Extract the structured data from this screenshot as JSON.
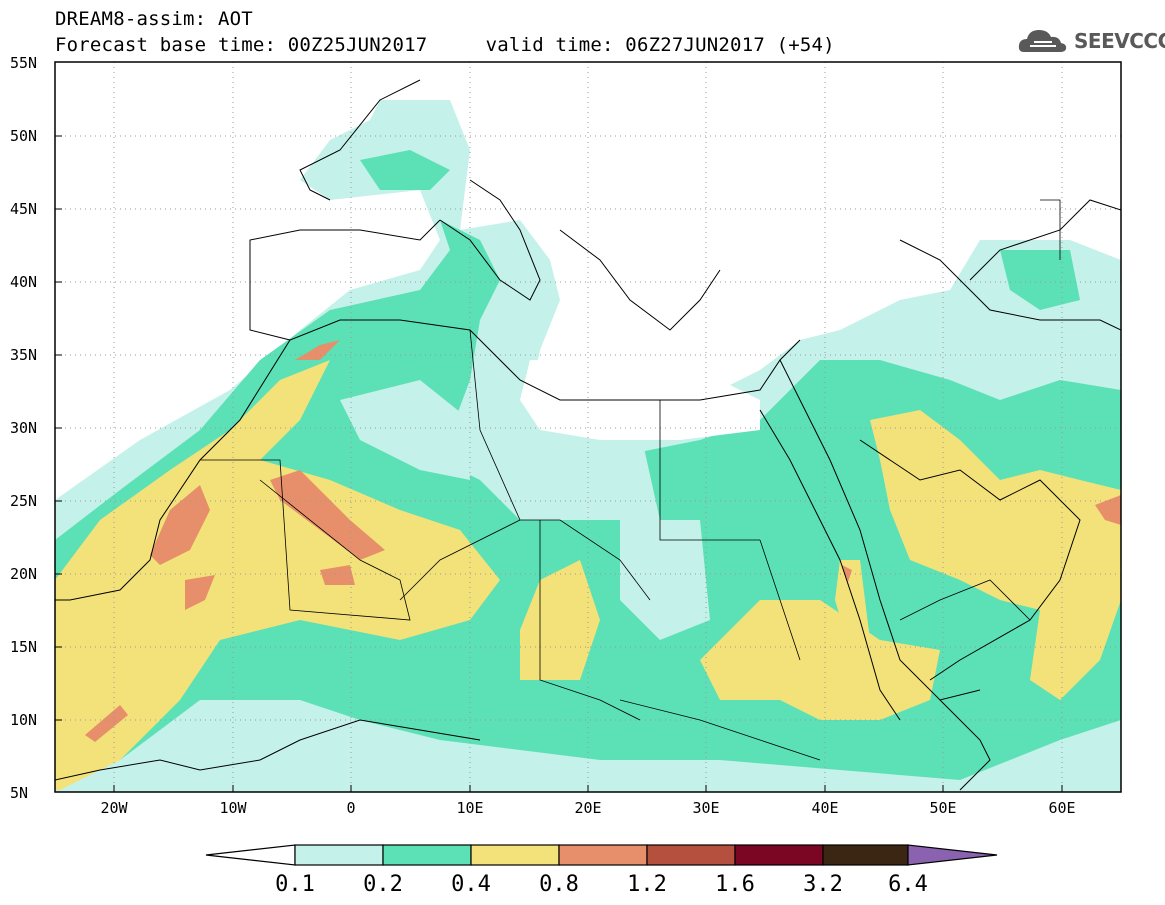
{
  "header": {
    "title_line1": "DREAM8-assim: AOT",
    "title_line2": "Forecast base time: 00Z25JUN2017     valid time: 06Z27JUN2017 (+54)",
    "logo_text": "SEEVCCC"
  },
  "map": {
    "projection": "lat-lon",
    "lon_range": [
      -25,
      65
    ],
    "lat_range": [
      5,
      55
    ],
    "grid": true,
    "lat_labels": [
      "55N",
      "50N",
      "45N",
      "40N",
      "35N",
      "30N",
      "25N",
      "20N",
      "15N",
      "10N",
      "5N"
    ],
    "lon_labels": [
      "20W",
      "10W",
      "0",
      "10E",
      "20E",
      "30E",
      "40E",
      "50E",
      "60E"
    ]
  },
  "legend": {
    "levels": [
      "0.1",
      "0.2",
      "0.4",
      "0.8",
      "1.2",
      "1.6",
      "3.2",
      "6.4"
    ],
    "colors": [
      "#ffffff",
      "#c4f1ea",
      "#5ce0b6",
      "#f3e27a",
      "#e78f6a",
      "#b5503e",
      "#7b0623",
      "#3b2614",
      "#8a62b0"
    ]
  },
  "icons": {
    "logo": "cloud-logo-icon"
  }
}
